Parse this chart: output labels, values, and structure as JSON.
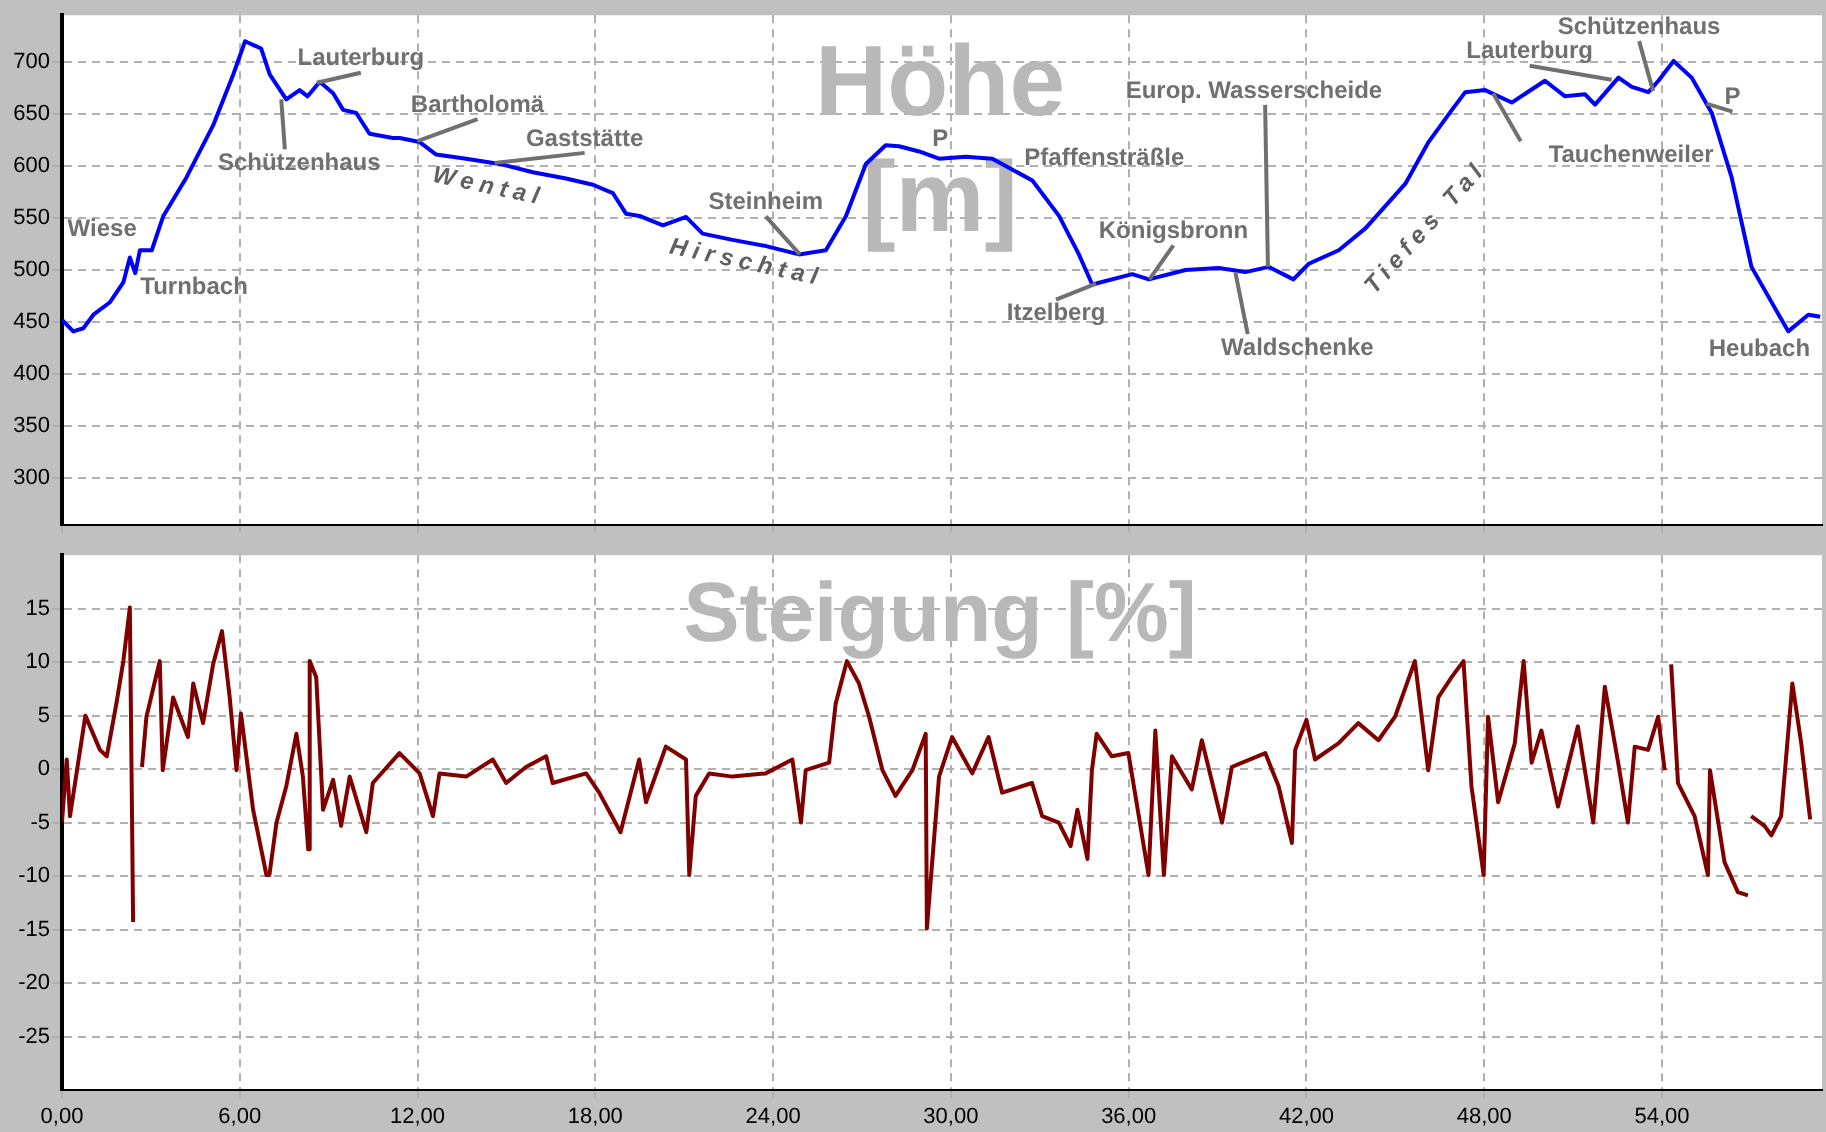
{
  "chart_data": [
    {
      "type": "line",
      "title": "Höhe [m]",
      "marker": "none",
      "grid": true,
      "tick_labels": "y",
      "x": [
        0,
        0.38,
        0.72,
        1.06,
        1.62,
        2.07,
        2.29,
        2.47,
        2.63,
        3.03,
        3.42,
        4.2,
        5.1,
        5.78,
        6.18,
        6.25,
        6.72,
        7.01,
        7.57,
        8.02,
        8.29,
        8.7,
        9.15,
        9.49,
        9.93,
        10.38,
        11.17,
        11.4,
        12.07,
        12.63,
        13.64,
        14.77,
        15.89,
        17.01,
        17.92,
        18.59,
        19.04,
        19.49,
        20.28,
        21.06,
        21.62,
        22.63,
        23.76,
        24.88,
        25.78,
        26.46,
        27.13,
        27.8,
        28.25,
        28.93,
        29.6,
        30.5,
        31.4,
        32.75,
        33.65,
        34.32,
        34.77,
        36.12,
        36.68,
        37.92,
        39.04,
        39.94,
        40.73,
        41.56,
        42.08,
        43.09,
        43.99,
        45.34,
        46.12,
        46.91,
        47.36,
        48.03,
        48.93,
        50.05,
        50.73,
        51.4,
        51.74,
        52.53,
        52.98,
        53.54,
        53.88,
        54.39,
        55.0,
        55.68,
        56.35,
        57.02,
        58.26,
        58.94,
        59.34
      ],
      "series": [
        {
          "color": "#0000ff",
          "values": [
            452,
            441,
            444,
            457,
            469,
            488,
            512,
            497,
            519,
            519,
            552,
            589,
            639,
            688,
            720,
            719,
            713,
            688,
            664,
            673,
            667,
            681,
            670,
            654,
            651,
            631,
            627,
            627,
            623,
            611,
            607,
            602,
            594,
            588,
            582,
            574,
            554,
            552,
            543,
            551,
            535,
            529,
            523,
            515,
            519,
            552,
            602,
            620,
            619,
            614,
            607,
            609,
            607,
            586,
            552,
            515,
            486,
            496,
            491,
            500,
            502,
            498,
            503,
            491,
            506,
            519,
            540,
            583,
            623,
            654,
            671,
            673,
            661,
            682,
            667,
            669,
            659,
            685,
            676,
            671,
            682,
            701,
            685,
            651,
            589,
            503,
            441,
            457,
            455
          ]
        }
      ],
      "xlim": [
        0,
        59.4
      ],
      "xticks": [
        0,
        6,
        12,
        18,
        24,
        30,
        36,
        42,
        48,
        54
      ],
      "ylim": [
        255,
        745
      ],
      "yticks": [
        300,
        350,
        400,
        450,
        500,
        550,
        600,
        650,
        700
      ],
      "annotations": [
        {
          "text": "Wiese",
          "x": 2.3,
          "y": 512
        },
        {
          "text": "Turnbach",
          "x": 2.5,
          "y": 497
        },
        {
          "text": "Schützenhaus",
          "x": 7.4,
          "y": 664
        },
        {
          "text": "Lauterburg",
          "x": 8.6,
          "y": 680
        },
        {
          "text": "Bartholomä",
          "x": 12.0,
          "y": 624
        },
        {
          "text": "Gaststätte",
          "x": 14.6,
          "y": 603
        },
        {
          "text": "Wental",
          "x": 14.4,
          "y": 603
        },
        {
          "text": "Hirschtal",
          "x": 23.1,
          "y": 526
        },
        {
          "text": "Steinheim",
          "x": 24.9,
          "y": 515
        },
        {
          "text": "P",
          "x": 29.3,
          "y": 610
        },
        {
          "text": "Pfaffensträßle",
          "x": 31.4,
          "y": 607
        },
        {
          "text": "Itzelberg",
          "x": 34.9,
          "y": 487
        },
        {
          "text": "Königsbronn",
          "x": 36.7,
          "y": 491
        },
        {
          "text": "Europ. Wasserscheide",
          "x": 40.7,
          "y": 503
        },
        {
          "text": "Waldschenke",
          "x": 39.6,
          "y": 498
        },
        {
          "text": "Tiefes Tal",
          "x": 45.5,
          "y": 583
        },
        {
          "text": "Lauterburg",
          "x": 52.3,
          "y": 683
        },
        {
          "text": "Schützenhaus",
          "x": 53.7,
          "y": 672
        },
        {
          "text": "Tauchenweiler",
          "x": 48.3,
          "y": 670
        },
        {
          "text": "P",
          "x": 55.5,
          "y": 660
        },
        {
          "text": "Heubach",
          "x": 58.3,
          "y": 443
        }
      ]
    },
    {
      "type": "line",
      "title": "Steigung [%]",
      "marker": "none",
      "grid": true,
      "color": "#800000",
      "x": [
        0,
        0.16,
        0.27,
        0.49,
        0.79,
        1.28,
        1.51,
        1.84,
        2.07,
        2.29,
        2.4,
        2.56,
        2.7,
        2.85,
        3.3,
        3.4,
        3.75,
        4.25,
        4.43,
        4.76,
        5.1,
        5.4,
        5.66,
        5.89,
        6.04,
        6.45,
        6.9,
        7.0,
        7.24,
        7.57,
        7.91,
        8.13,
        8.31,
        8.36,
        8.58,
        8.81,
        9.15,
        9.42,
        9.71,
        10.27,
        10.49,
        11.39,
        12.07,
        12.52,
        12.74,
        13.64,
        14.54,
        14.99,
        15.66,
        16.34,
        16.56,
        17.69,
        18.13,
        18.85,
        19.48,
        19.71,
        20.38,
        21.06,
        21.17,
        21.39,
        21.84,
        22.63,
        23.75,
        24.65,
        24.94,
        25.1,
        25.89,
        26.11,
        26.49,
        26.9,
        27.24,
        27.69,
        28.13,
        28.7,
        29.15,
        29.19,
        29.6,
        30.04,
        30.72,
        31.27,
        31.73,
        32.74,
        33.08,
        33.64,
        34.04,
        34.27,
        34.61,
        34.76,
        34.92,
        35.43,
        35.99,
        36.67,
        36.9,
        37.19,
        37.46,
        38.13,
        38.47,
        39.15,
        39.48,
        40.61,
        41.06,
        41.51,
        41.62,
        42.0,
        42.29,
        43.08,
        43.75,
        44.43,
        44.99,
        45.66,
        46.11,
        46.45,
        46.9,
        47.3,
        47.57,
        47.98,
        48.13,
        48.47,
        49.03,
        49.33,
        49.6,
        49.93,
        50.49,
        51.16,
        51.68,
        52.07,
        52.52,
        52.85,
        53.08,
        53.53,
        53.87,
        54.09,
        54.16,
        54.31,
        54.54,
        55.1,
        55.55,
        55.62,
        56.11,
        56.56,
        56.9,
        56.97,
        57.01,
        57.46,
        57.69,
        58.02,
        58.4,
        58.7,
        59.0
      ],
      "values": [
        -4.9,
        0.9,
        -4.4,
        -0.4,
        5,
        1.8,
        1.2,
        6.2,
        10.1,
        15.1,
        -14.3,
        null,
        0.2,
        4.9,
        10.1,
        -0.1,
        6.7,
        3,
        8,
        4.3,
        9.8,
        12.9,
        6.7,
        -0.1,
        5.2,
        -3.8,
        -9.9,
        -9.9,
        -5,
        -1.6,
        3.3,
        -0.7,
        -7.5,
        10.1,
        8.6,
        -3.8,
        -1,
        -5.3,
        -0.7,
        -5.9,
        -1.3,
        1.5,
        -0.4,
        -4.4,
        -0.4,
        -0.7,
        0.9,
        -1.3,
        0.2,
        1.2,
        -1.3,
        -0.4,
        -2.2,
        -5.9,
        0.9,
        -3.1,
        2.1,
        0.9,
        -9.9,
        -2.5,
        -0.4,
        -0.7,
        -0.4,
        0.9,
        -5,
        -0.1,
        0.6,
        6.1,
        10.1,
        8,
        4.9,
        -0.1,
        -2.5,
        -0.1,
        3.3,
        -14.9,
        -0.7,
        3,
        -0.4,
        3,
        -2.2,
        -1.3,
        -4.4,
        -5,
        -7.2,
        -3.8,
        -8.4,
        -0.1,
        3.3,
        1.2,
        1.5,
        -9.9,
        3.6,
        -9.9,
        1.2,
        -1.9,
        2.7,
        -5,
        0.2,
        1.5,
        -1.6,
        -6.9,
        1.8,
        4.6,
        0.9,
        2.4,
        4.3,
        2.7,
        4.9,
        10.1,
        -0.1,
        6.7,
        8.6,
        10.1,
        -1.6,
        -9.9,
        4.9,
        -3.1,
        2.4,
        10.1,
        0.6,
        3.6,
        -3.5,
        4,
        -5,
        7.7,
        0.6,
        -5,
        2.1,
        1.8,
        4.9,
        -0.1,
        null,
        9.8,
        -1.3,
        -4.4,
        -9.9,
        -0.1,
        -8.7,
        -11.5,
        -11.8,
        null,
        -4.4,
        -5.3,
        -6.2,
        -4.4,
        8,
        2.4,
        -4.7
      ],
      "xlim": [
        0,
        59.4
      ],
      "xticks": [
        {
          "value": 0,
          "label": "0,00"
        },
        {
          "value": 6,
          "label": "6,00"
        },
        {
          "value": 12,
          "label": "12,00"
        },
        {
          "value": 18,
          "label": "18,00"
        },
        {
          "value": 24,
          "label": "24,00"
        },
        {
          "value": 30,
          "label": "30,00"
        },
        {
          "value": 36,
          "label": "36,00"
        },
        {
          "value": 42,
          "label": "42,00"
        },
        {
          "value": 48,
          "label": "48,00"
        },
        {
          "value": 54,
          "label": "54,00"
        }
      ],
      "ylim": [
        -30,
        20
      ],
      "yticks": [
        -25,
        -20,
        -15,
        -10,
        -5,
        0,
        5,
        10,
        15
      ]
    }
  ]
}
